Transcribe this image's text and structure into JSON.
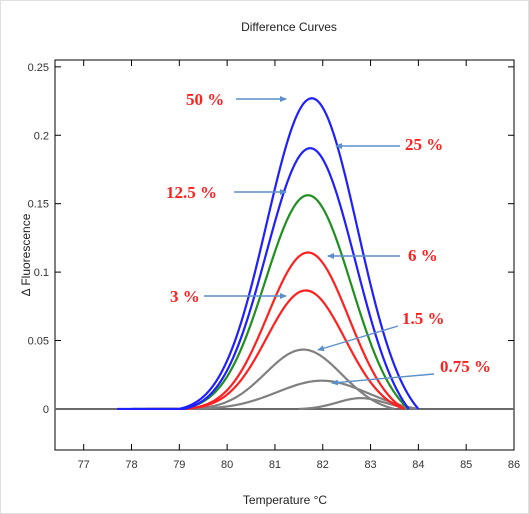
{
  "chart_data": {
    "type": "line",
    "title": "Difference Curves",
    "xlabel": "Temperature °C",
    "ylabel": "Δ Fluorescence",
    "xlim": [
      76.4,
      86
    ],
    "ylim": [
      -0.03,
      0.255
    ],
    "x_ticks": [
      "77",
      "78",
      "79",
      "80",
      "81",
      "82",
      "83",
      "84",
      "85",
      "86"
    ],
    "y_ticks": [
      "0",
      "0.05",
      "0.1",
      "0.15",
      "0.2",
      "0.25"
    ],
    "grid": false,
    "series": [
      {
        "name": "50 %",
        "color": "#1f1fff",
        "peak_x": 81.78,
        "peak_y": 0.237,
        "width": 0.95,
        "start": 77.7,
        "end": 84.0
      },
      {
        "name": "25 %",
        "color": "#1f1fff",
        "peak_x": 81.75,
        "peak_y": 0.202,
        "width": 0.93,
        "start": 78.0,
        "end": 83.8
      },
      {
        "name": "12.5 %",
        "color": "#1f8f1f",
        "peak_x": 81.7,
        "peak_y": 0.163,
        "width": 0.9,
        "start": 78.0,
        "end": 83.8
      },
      {
        "name": "6 %",
        "color": "#ff2020",
        "peak_x": 81.7,
        "peak_y": 0.119,
        "width": 0.85,
        "start": 78.3,
        "end": 83.7
      },
      {
        "name": "3 %",
        "color": "#ff2020",
        "peak_x": 81.65,
        "peak_y": 0.089,
        "width": 0.82,
        "start": 78.3,
        "end": 83.7
      },
      {
        "name": "1.5 %",
        "color": "#808080",
        "peak_x": 81.6,
        "peak_y": 0.045,
        "width": 0.8,
        "start": 78.5,
        "end": 83.5
      },
      {
        "name": "0.75 %",
        "color": "#808080",
        "peak_x": 82.0,
        "peak_y": 0.022,
        "width": 0.95,
        "start": 79.0,
        "end": 84.0
      },
      {
        "name": "",
        "color": "#808080",
        "peak_x": 82.8,
        "peak_y": 0.008,
        "width": 0.5,
        "start": 81.5,
        "end": 84.0
      }
    ],
    "annotations": [
      {
        "text": "50 %",
        "target": "50 %"
      },
      {
        "text": "25 %",
        "target": "25 %"
      },
      {
        "text": "12.5 %",
        "target": "12.5 %"
      },
      {
        "text": "6 %",
        "target": "6 %"
      },
      {
        "text": "3 %",
        "target": "3 %"
      },
      {
        "text": "1.5 %",
        "target": "1.5 %"
      },
      {
        "text": "0.75 %",
        "target": "0.75 %"
      }
    ],
    "annotation_color": "#ff2020",
    "arrow_color": "#5b8fc9"
  }
}
